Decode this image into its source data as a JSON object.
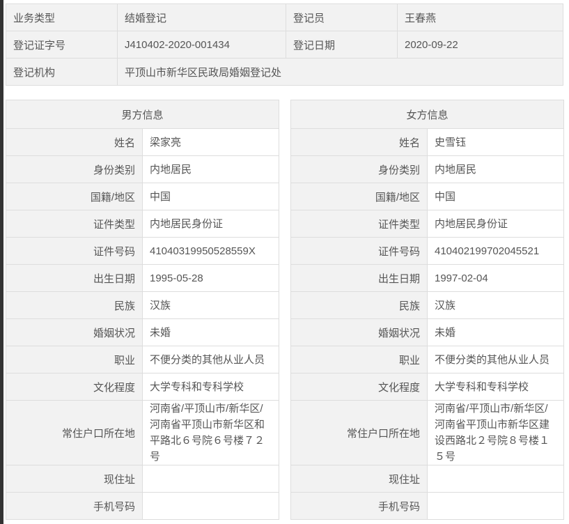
{
  "registration": {
    "type_label": "业务类型",
    "type_value": "结婚登记",
    "clerk_label": "登记员",
    "clerk_value": "王春燕",
    "cert_no_label": "登记证字号",
    "cert_no_value": "J410402-2020-001434",
    "date_label": "登记日期",
    "date_value": "2020-09-22",
    "office_label": "登记机构",
    "office_value": "平顶山市新华区民政局婚姻登记处"
  },
  "male": {
    "title": "男方信息",
    "rows": [
      {
        "label": "姓名",
        "value": "梁家亮"
      },
      {
        "label": "身份类别",
        "value": "内地居民"
      },
      {
        "label": "国籍/地区",
        "value": "中国"
      },
      {
        "label": "证件类型",
        "value": "内地居民身份证"
      },
      {
        "label": "证件号码",
        "value": "41040319950528559X"
      },
      {
        "label": "出生日期",
        "value": "1995-05-28"
      },
      {
        "label": "民族",
        "value": "汉族"
      },
      {
        "label": "婚姻状况",
        "value": "未婚"
      },
      {
        "label": "职业",
        "value": "不便分类的其他从业人员"
      },
      {
        "label": "文化程度",
        "value": "大学专科和专科学校"
      },
      {
        "label": "常住户口所在地",
        "value": "河南省/平顶山市/新华区/河南省平顶山市新华区和平路北６号院６号楼７２号"
      },
      {
        "label": "现住址",
        "value": ""
      },
      {
        "label": "手机号码",
        "value": ""
      }
    ]
  },
  "female": {
    "title": "女方信息",
    "rows": [
      {
        "label": "姓名",
        "value": "史雪钰"
      },
      {
        "label": "身份类别",
        "value": "内地居民"
      },
      {
        "label": "国籍/地区",
        "value": "中国"
      },
      {
        "label": "证件类型",
        "value": "内地居民身份证"
      },
      {
        "label": "证件号码",
        "value": "410402199702045521"
      },
      {
        "label": "出生日期",
        "value": "1997-02-04"
      },
      {
        "label": "民族",
        "value": "汉族"
      },
      {
        "label": "婚姻状况",
        "value": "未婚"
      },
      {
        "label": "职业",
        "value": "不便分类的其他从业人员"
      },
      {
        "label": "文化程度",
        "value": "大学专科和专科学校"
      },
      {
        "label": "常住户口所在地",
        "value": "河南省/平顶山市/新华区/河南省平顶山市新华区建设西路北２号院８号楼１５号"
      },
      {
        "label": "现住址",
        "value": ""
      },
      {
        "label": "手机号码",
        "value": ""
      }
    ]
  }
}
